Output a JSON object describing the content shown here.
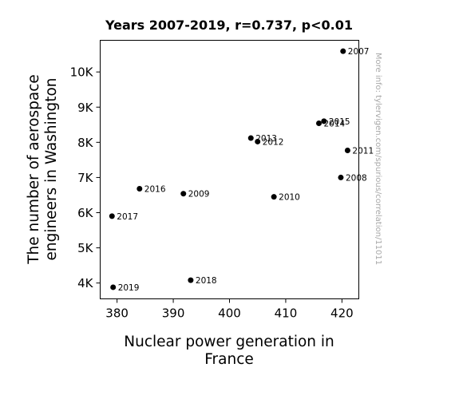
{
  "chart_data": {
    "type": "scatter",
    "title": "Years 2007-2019, r=0.737, p<0.01",
    "xlabel": [
      "Nuclear power generation in",
      "France"
    ],
    "ylabel": [
      "The number of aerospace",
      "engineers in Washington"
    ],
    "watermark": "More info: tylervigen.com/spurious/correlation/11011",
    "xlim": [
      377,
      423
    ],
    "ylim": [
      3550,
      10900
    ],
    "x_ticks": [
      380,
      390,
      400,
      410,
      420
    ],
    "x_tick_labels": [
      "380",
      "390",
      "400",
      "410",
      "420"
    ],
    "y_ticks": [
      4000,
      5000,
      6000,
      7000,
      8000,
      9000,
      10000
    ],
    "y_tick_labels": [
      "4K",
      "5K",
      "6K",
      "7K",
      "8K",
      "9K",
      "10K"
    ],
    "grid": false,
    "marker_color": "#000000",
    "points": [
      {
        "label": "2007",
        "x": 420.2,
        "y": 10590
      },
      {
        "label": "2008",
        "x": 419.8,
        "y": 7000
      },
      {
        "label": "2009",
        "x": 391.8,
        "y": 6540
      },
      {
        "label": "2010",
        "x": 407.9,
        "y": 6450
      },
      {
        "label": "2011",
        "x": 421.0,
        "y": 7770
      },
      {
        "label": "2012",
        "x": 405.0,
        "y": 8020
      },
      {
        "label": "2013",
        "x": 403.8,
        "y": 8120
      },
      {
        "label": "2014",
        "x": 415.9,
        "y": 8540
      },
      {
        "label": "2015",
        "x": 416.8,
        "y": 8600
      },
      {
        "label": "2016",
        "x": 384.0,
        "y": 6680
      },
      {
        "label": "2017",
        "x": 379.1,
        "y": 5900
      },
      {
        "label": "2018",
        "x": 393.1,
        "y": 4080
      },
      {
        "label": "2019",
        "x": 379.3,
        "y": 3880
      }
    ]
  }
}
